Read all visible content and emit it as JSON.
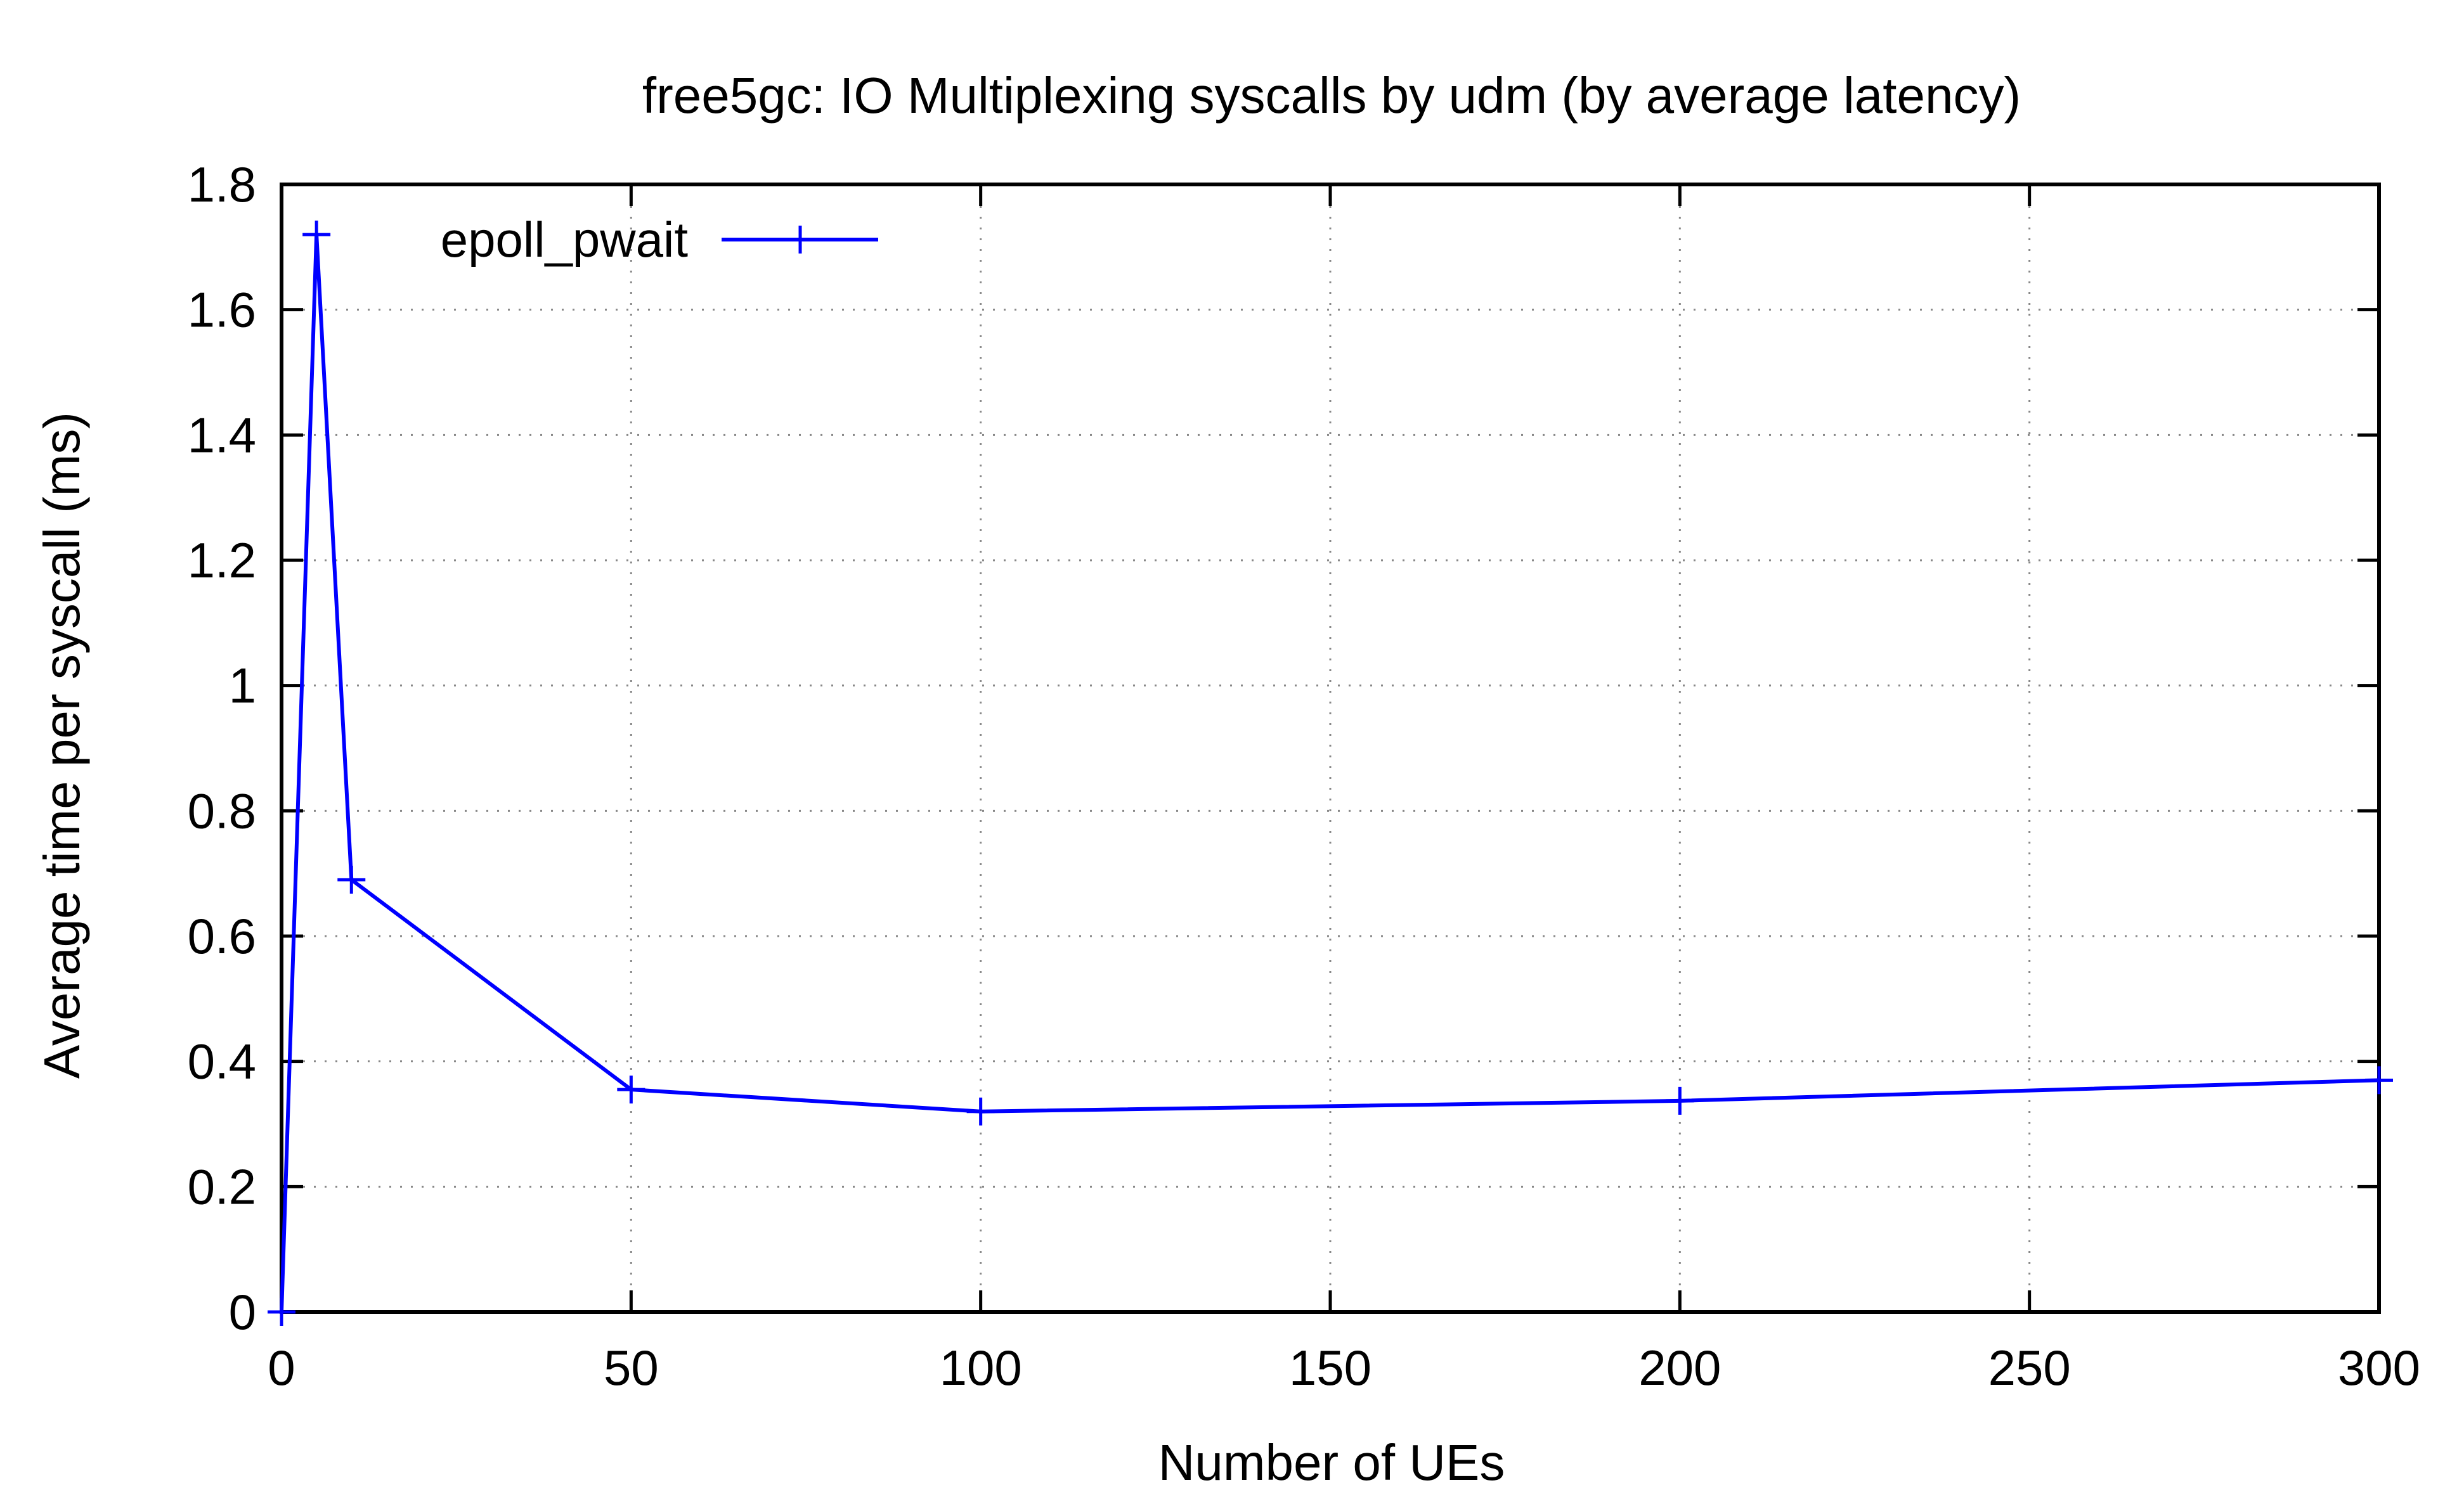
{
  "chart_data": {
    "type": "line",
    "title": "free5gc: IO Multiplexing syscalls by udm (by average latency)",
    "xlabel": "Number of UEs",
    "ylabel": "Average time per syscall (ms)",
    "xlim": [
      0,
      300
    ],
    "ylim": [
      0,
      1.8
    ],
    "x_ticks": [
      0,
      50,
      100,
      150,
      200,
      250,
      300
    ],
    "x_tick_labels": [
      "0",
      "50",
      "100",
      "150",
      "200",
      "250",
      "300"
    ],
    "y_ticks": [
      0,
      0.2,
      0.4,
      0.6,
      0.8,
      1,
      1.2,
      1.4,
      1.6,
      1.8
    ],
    "y_tick_labels": [
      "0",
      "0.2",
      "0.4",
      "0.6",
      "0.8",
      "1",
      "1.2",
      "1.4",
      "1.6",
      "1.8"
    ],
    "grid": true,
    "legend_position": "top-left",
    "series": [
      {
        "name": "epoll_pwait",
        "color": "#0000ff",
        "marker": "plus",
        "x": [
          0,
          5,
          10,
          50,
          100,
          200,
          300
        ],
        "y": [
          0,
          1.72,
          0.69,
          0.355,
          0.32,
          0.337,
          0.37
        ]
      }
    ]
  }
}
